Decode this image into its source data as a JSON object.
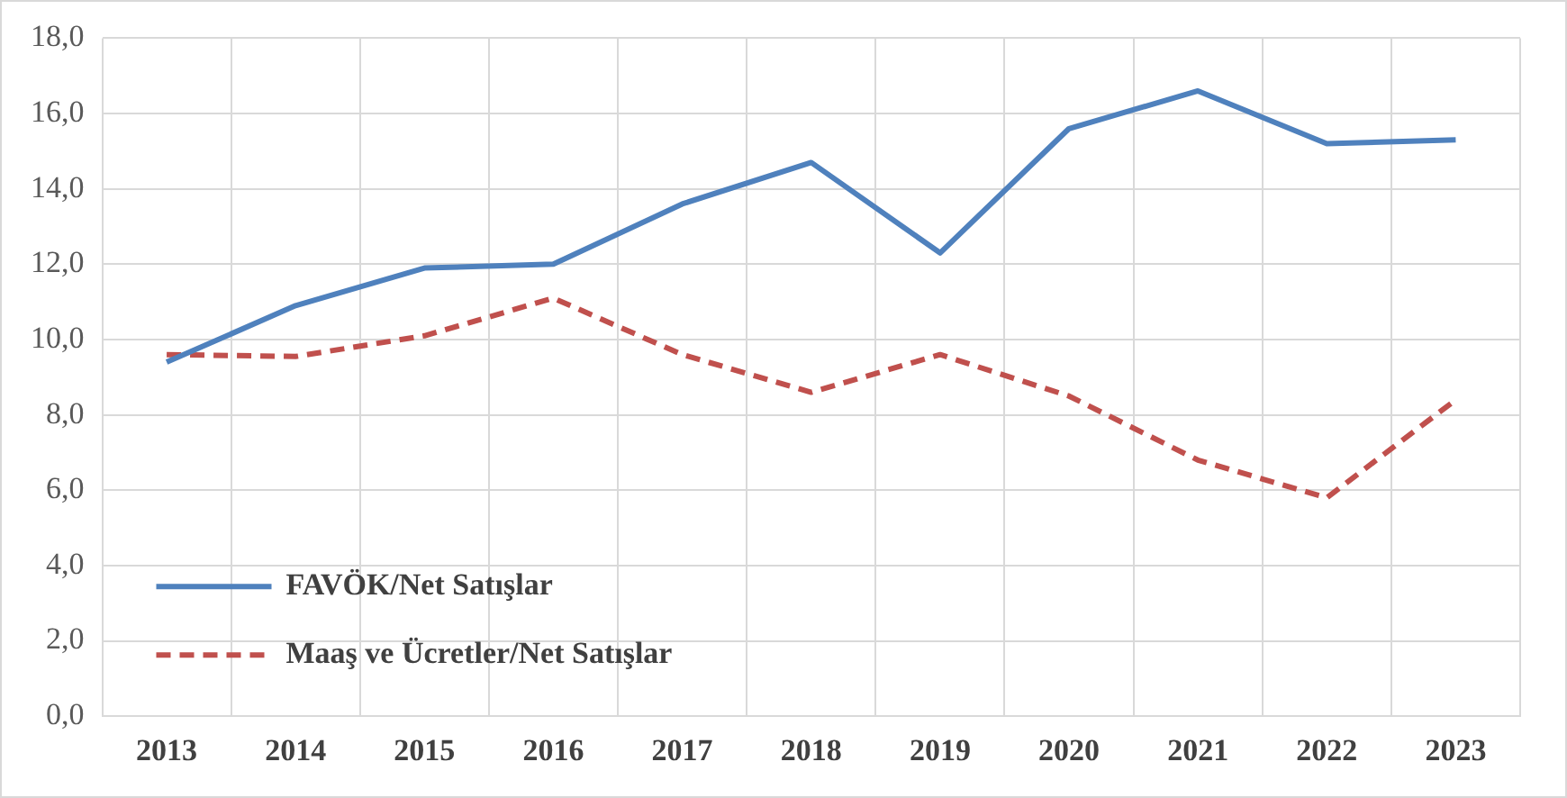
{
  "chart_data": {
    "type": "line",
    "categories": [
      "2013",
      "2014",
      "2015",
      "2016",
      "2017",
      "2018",
      "2019",
      "2020",
      "2021",
      "2022",
      "2023"
    ],
    "series": [
      {
        "name": "FAVÖK/Net Satışlar",
        "color": "#4f81bd",
        "line_style": "solid",
        "values": [
          9.4,
          10.9,
          11.9,
          12.0,
          13.6,
          14.7,
          12.3,
          15.6,
          16.6,
          15.2,
          15.3
        ]
      },
      {
        "name": "Maaş ve Ücretler/Net Satışlar",
        "color": "#c0504d",
        "line_style": "dashed",
        "values": [
          9.6,
          9.55,
          10.1,
          11.1,
          9.6,
          8.6,
          9.6,
          8.5,
          6.8,
          5.8,
          8.4
        ]
      }
    ],
    "ylim": [
      0,
      18
    ],
    "yticks": [
      {
        "value": 0,
        "label": "0,0"
      },
      {
        "value": 2,
        "label": "2,0"
      },
      {
        "value": 4,
        "label": "4,0"
      },
      {
        "value": 6,
        "label": "6,0"
      },
      {
        "value": 8,
        "label": "8,0"
      },
      {
        "value": 10,
        "label": "10,0"
      },
      {
        "value": 12,
        "label": "12,0"
      },
      {
        "value": 14,
        "label": "14,0"
      },
      {
        "value": 16,
        "label": "16,0"
      },
      {
        "value": 18,
        "label": "18,0"
      }
    ],
    "grid": true,
    "legend": "bottom left",
    "marker": "none"
  }
}
